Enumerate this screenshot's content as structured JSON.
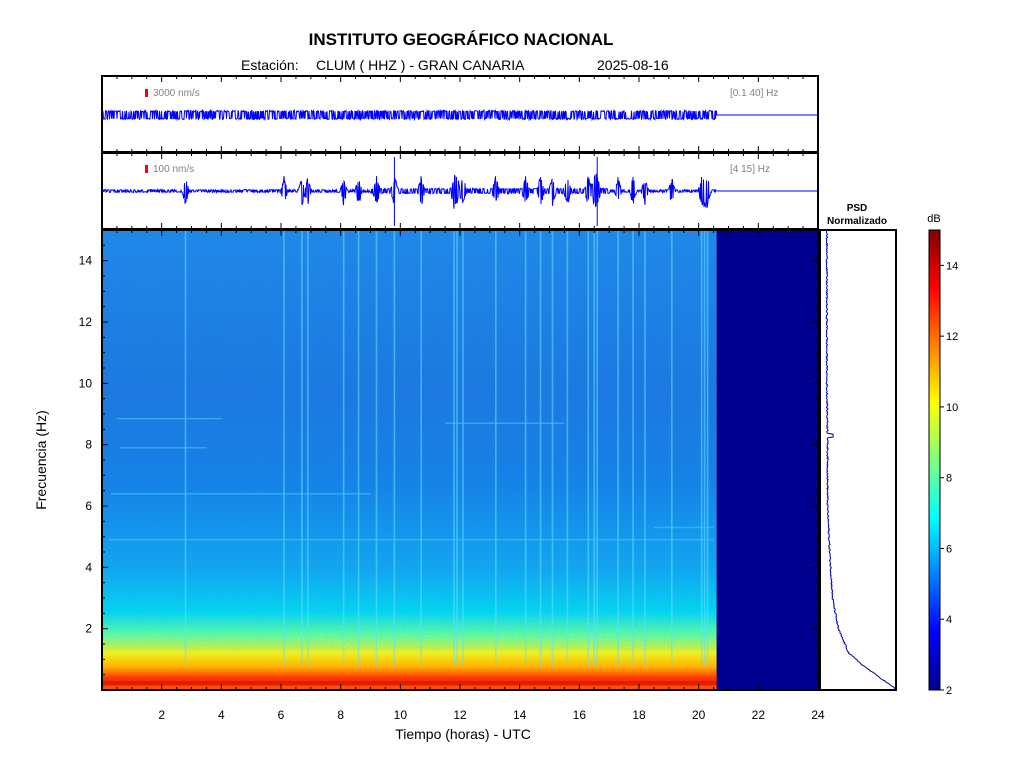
{
  "header": {
    "title": "INSTITUTO GEOGRÁFICO NACIONAL",
    "station_prefix": "Estación:",
    "station": "CLUM ( HHZ ) - GRAN CANARIA",
    "date": "2025-08-16"
  },
  "colors": {
    "trace": "#0000ff",
    "frame": "#000000",
    "scale_bar": "#ff0000",
    "no_data": "#00008f",
    "psd_line": "#0000a0"
  },
  "traces": [
    {
      "scale_label": "3000 nm/s",
      "band_label": "[0.1 40] Hz",
      "data_end_hour": 20.6
    },
    {
      "scale_label": "100 nm/s",
      "band_label": "[4 15] Hz",
      "data_end_hour": 20.6,
      "events_hours": [
        2.8,
        6.1,
        6.7,
        6.9,
        8.1,
        8.6,
        9.2,
        9.8,
        10.7,
        11.8,
        11.9,
        12.1,
        13.2,
        14.2,
        14.7,
        15.1,
        15.6,
        16.3,
        16.5,
        16.6,
        17.3,
        17.8,
        18.2,
        19.1,
        20.1,
        20.2,
        20.3
      ]
    }
  ],
  "psd": {
    "title_line1": "PSD",
    "title_line2": "Normalizado"
  },
  "colorbar": {
    "unit": "dB",
    "min": 2,
    "max": 15,
    "ticks": [
      "2",
      "4",
      "6",
      "8",
      "10",
      "12",
      "14"
    ]
  },
  "chart_data": {
    "type": "heatmap",
    "title": "INSTITUTO GEOGRÁFICO NACIONAL",
    "xlabel": "Tiempo (horas) - UTC",
    "ylabel": "Frecuencia  (Hz)",
    "xlim": [
      0,
      24
    ],
    "ylim": [
      0,
      15
    ],
    "x_ticks": [
      "2",
      "4",
      "6",
      "8",
      "10",
      "12",
      "14",
      "16",
      "18",
      "20",
      "22",
      "24"
    ],
    "y_ticks": [
      "2",
      "4",
      "6",
      "8",
      "10",
      "12",
      "14"
    ],
    "data_end_hour": 20.6,
    "no_data_range": [
      20.6,
      24
    ],
    "colorbar_range_db": [
      2,
      15
    ],
    "spectral_profile": [
      {
        "freq_hz": 0.2,
        "db": 12.5
      },
      {
        "freq_hz": 0.5,
        "db": 12.0
      },
      {
        "freq_hz": 1.0,
        "db": 10.5
      },
      {
        "freq_hz": 1.5,
        "db": 9.0
      },
      {
        "freq_hz": 2.0,
        "db": 7.5
      },
      {
        "freq_hz": 3.0,
        "db": 6.2
      },
      {
        "freq_hz": 4.0,
        "db": 5.5
      },
      {
        "freq_hz": 6.0,
        "db": 5.0
      },
      {
        "freq_hz": 8.0,
        "db": 4.8
      },
      {
        "freq_hz": 10.0,
        "db": 4.8
      },
      {
        "freq_hz": 12.0,
        "db": 4.9
      },
      {
        "freq_hz": 15.0,
        "db": 4.9
      }
    ],
    "psd_normalized": [
      {
        "freq_hz": 0.05,
        "value": 1.0
      },
      {
        "freq_hz": 0.3,
        "value": 0.85
      },
      {
        "freq_hz": 0.8,
        "value": 0.55
      },
      {
        "freq_hz": 1.2,
        "value": 0.35
      },
      {
        "freq_hz": 2.0,
        "value": 0.2
      },
      {
        "freq_hz": 3.0,
        "value": 0.12
      },
      {
        "freq_hz": 4.5,
        "value": 0.08
      },
      {
        "freq_hz": 6.0,
        "value": 0.05
      },
      {
        "freq_hz": 8.3,
        "value": 0.05
      },
      {
        "freq_hz": 10.0,
        "value": 0.04
      },
      {
        "freq_hz": 12.0,
        "value": 0.04
      },
      {
        "freq_hz": 15.0,
        "value": 0.04
      }
    ]
  }
}
